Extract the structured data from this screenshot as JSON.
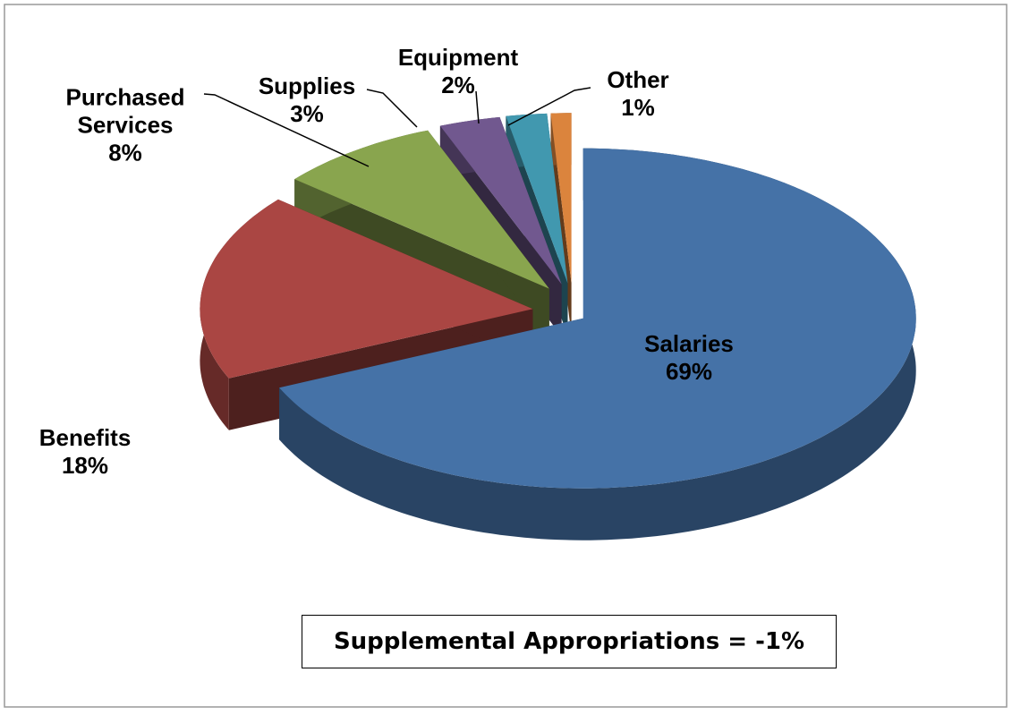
{
  "chart_data": {
    "type": "pie",
    "categories": [
      "Salaries",
      "Benefits",
      "Purchased Services",
      "Supplies",
      "Equipment",
      "Other"
    ],
    "values": [
      69,
      18,
      8,
      3,
      2,
      1
    ],
    "value_labels": [
      "69%",
      "18%",
      "8%",
      "3%",
      "2%",
      "1%"
    ],
    "colors": [
      "#4572a7",
      "#aa4643",
      "#89a54e",
      "#71588f",
      "#4198af",
      "#db843d"
    ],
    "annotation": "Supplemental Appropriations = -1%"
  }
}
